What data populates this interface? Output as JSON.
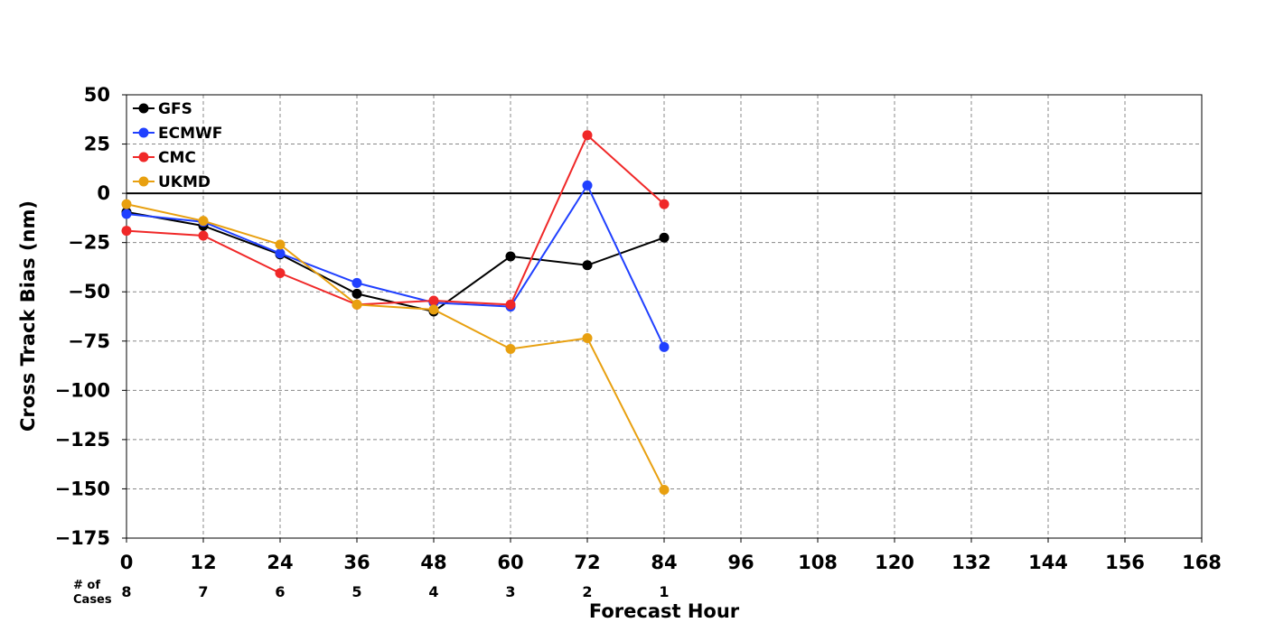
{
  "chart_data": {
    "type": "line",
    "xlabel": "Forecast Hour",
    "ylabel": "Cross Track Bias (nm)",
    "x_ticks": [
      0,
      12,
      24,
      36,
      48,
      60,
      72,
      84,
      96,
      108,
      120,
      132,
      144,
      156,
      168
    ],
    "y_ticks": [
      50,
      25,
      0,
      -25,
      -50,
      -75,
      -100,
      -125,
      -150,
      -175
    ],
    "y_tick_labels": [
      "50",
      "25",
      "0",
      "−25",
      "−50",
      "−75",
      "−100",
      "−125",
      "−150",
      "−175"
    ],
    "xlim": [
      0,
      168
    ],
    "ylim": [
      -175,
      50
    ],
    "grid": true,
    "legend_position": "top-left",
    "cases_label": "# of\nCases",
    "cases": [
      {
        "hour": 0,
        "count": "8"
      },
      {
        "hour": 12,
        "count": "7"
      },
      {
        "hour": 24,
        "count": "6"
      },
      {
        "hour": 36,
        "count": "5"
      },
      {
        "hour": 48,
        "count": "4"
      },
      {
        "hour": 60,
        "count": "3"
      },
      {
        "hour": 72,
        "count": "2"
      },
      {
        "hour": 84,
        "count": "1"
      }
    ],
    "series": [
      {
        "name": "GFS",
        "color": "#000000",
        "x": [
          0,
          12,
          24,
          36,
          48,
          60,
          72,
          84
        ],
        "values": [
          -9.5,
          -16.5,
          -31,
          -51,
          -60,
          -32,
          -36.5,
          -22.5
        ]
      },
      {
        "name": "ECMWF",
        "color": "#2040ff",
        "x": [
          0,
          12,
          24,
          36,
          48,
          60,
          72,
          84
        ],
        "values": [
          -10.5,
          -14.5,
          -30.5,
          -45.5,
          -55.5,
          -57.5,
          4,
          -78
        ]
      },
      {
        "name": "CMC",
        "color": "#f02828",
        "x": [
          0,
          12,
          24,
          36,
          48,
          60,
          72,
          84
        ],
        "values": [
          -19,
          -21.5,
          -40.5,
          -56.5,
          -54.5,
          -56.5,
          29.5,
          -5.5
        ]
      },
      {
        "name": "UKMD",
        "color": "#e8a010",
        "x": [
          0,
          12,
          24,
          36,
          48,
          60,
          72,
          84
        ],
        "values": [
          -5.5,
          -14,
          -26,
          -56.5,
          -59,
          -79,
          -73.5,
          -150.5
        ]
      }
    ]
  }
}
